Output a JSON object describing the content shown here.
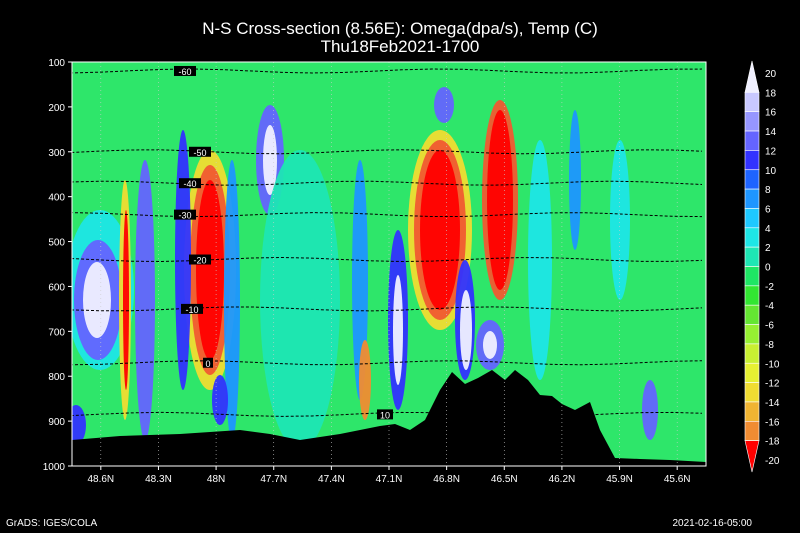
{
  "title_line1": "N-S Cross-section (8.56E): Omega(dpa/s), Temp (C)",
  "title_line2": "Thu18Feb2021-1700",
  "footer_left": "GrADS: IGES/COLA",
  "footer_right": "2021-02-16-05:00",
  "chart_data": {
    "type": "heatmap",
    "x_ticks": [
      "48.6N",
      "48.3N",
      "48N",
      "47.7N",
      "47.4N",
      "47.1N",
      "46.8N",
      "46.5N",
      "46.2N",
      "45.9N",
      "45.6N"
    ],
    "y_ticks": [
      100,
      200,
      300,
      400,
      500,
      600,
      700,
      800,
      900,
      1000
    ],
    "ylim": [
      1000,
      100
    ],
    "colorbar": {
      "levels": [
        20,
        18,
        16,
        14,
        12,
        10,
        8,
        6,
        4,
        2,
        0,
        -2,
        -4,
        -6,
        -8,
        -10,
        -12,
        -14,
        -16,
        -18,
        -20
      ],
      "colors": [
        "#f0f0ff",
        "#c8c8ff",
        "#9696ff",
        "#6464ff",
        "#3232ff",
        "#1e64ff",
        "#1e96ff",
        "#1ec8ff",
        "#1ee6e6",
        "#1ee6b4",
        "#1ee664",
        "#32e632",
        "#64e632",
        "#96f032",
        "#c8f032",
        "#e6f032",
        "#f0dc32",
        "#f0b432",
        "#f08c32",
        "#f05a32",
        "#ff0000"
      ]
    },
    "isotherm_labels": [
      {
        "value": "-60",
        "pressure": 120
      },
      {
        "value": "-50",
        "pressure": 300
      },
      {
        "value": "-40",
        "pressure": 370
      },
      {
        "value": "-30",
        "pressure": 440
      },
      {
        "value": "-20",
        "pressure": 540
      },
      {
        "value": "-10",
        "pressure": 650
      },
      {
        "value": "0",
        "pressure": 770
      },
      {
        "value": "10",
        "pressure": 885
      }
    ]
  }
}
